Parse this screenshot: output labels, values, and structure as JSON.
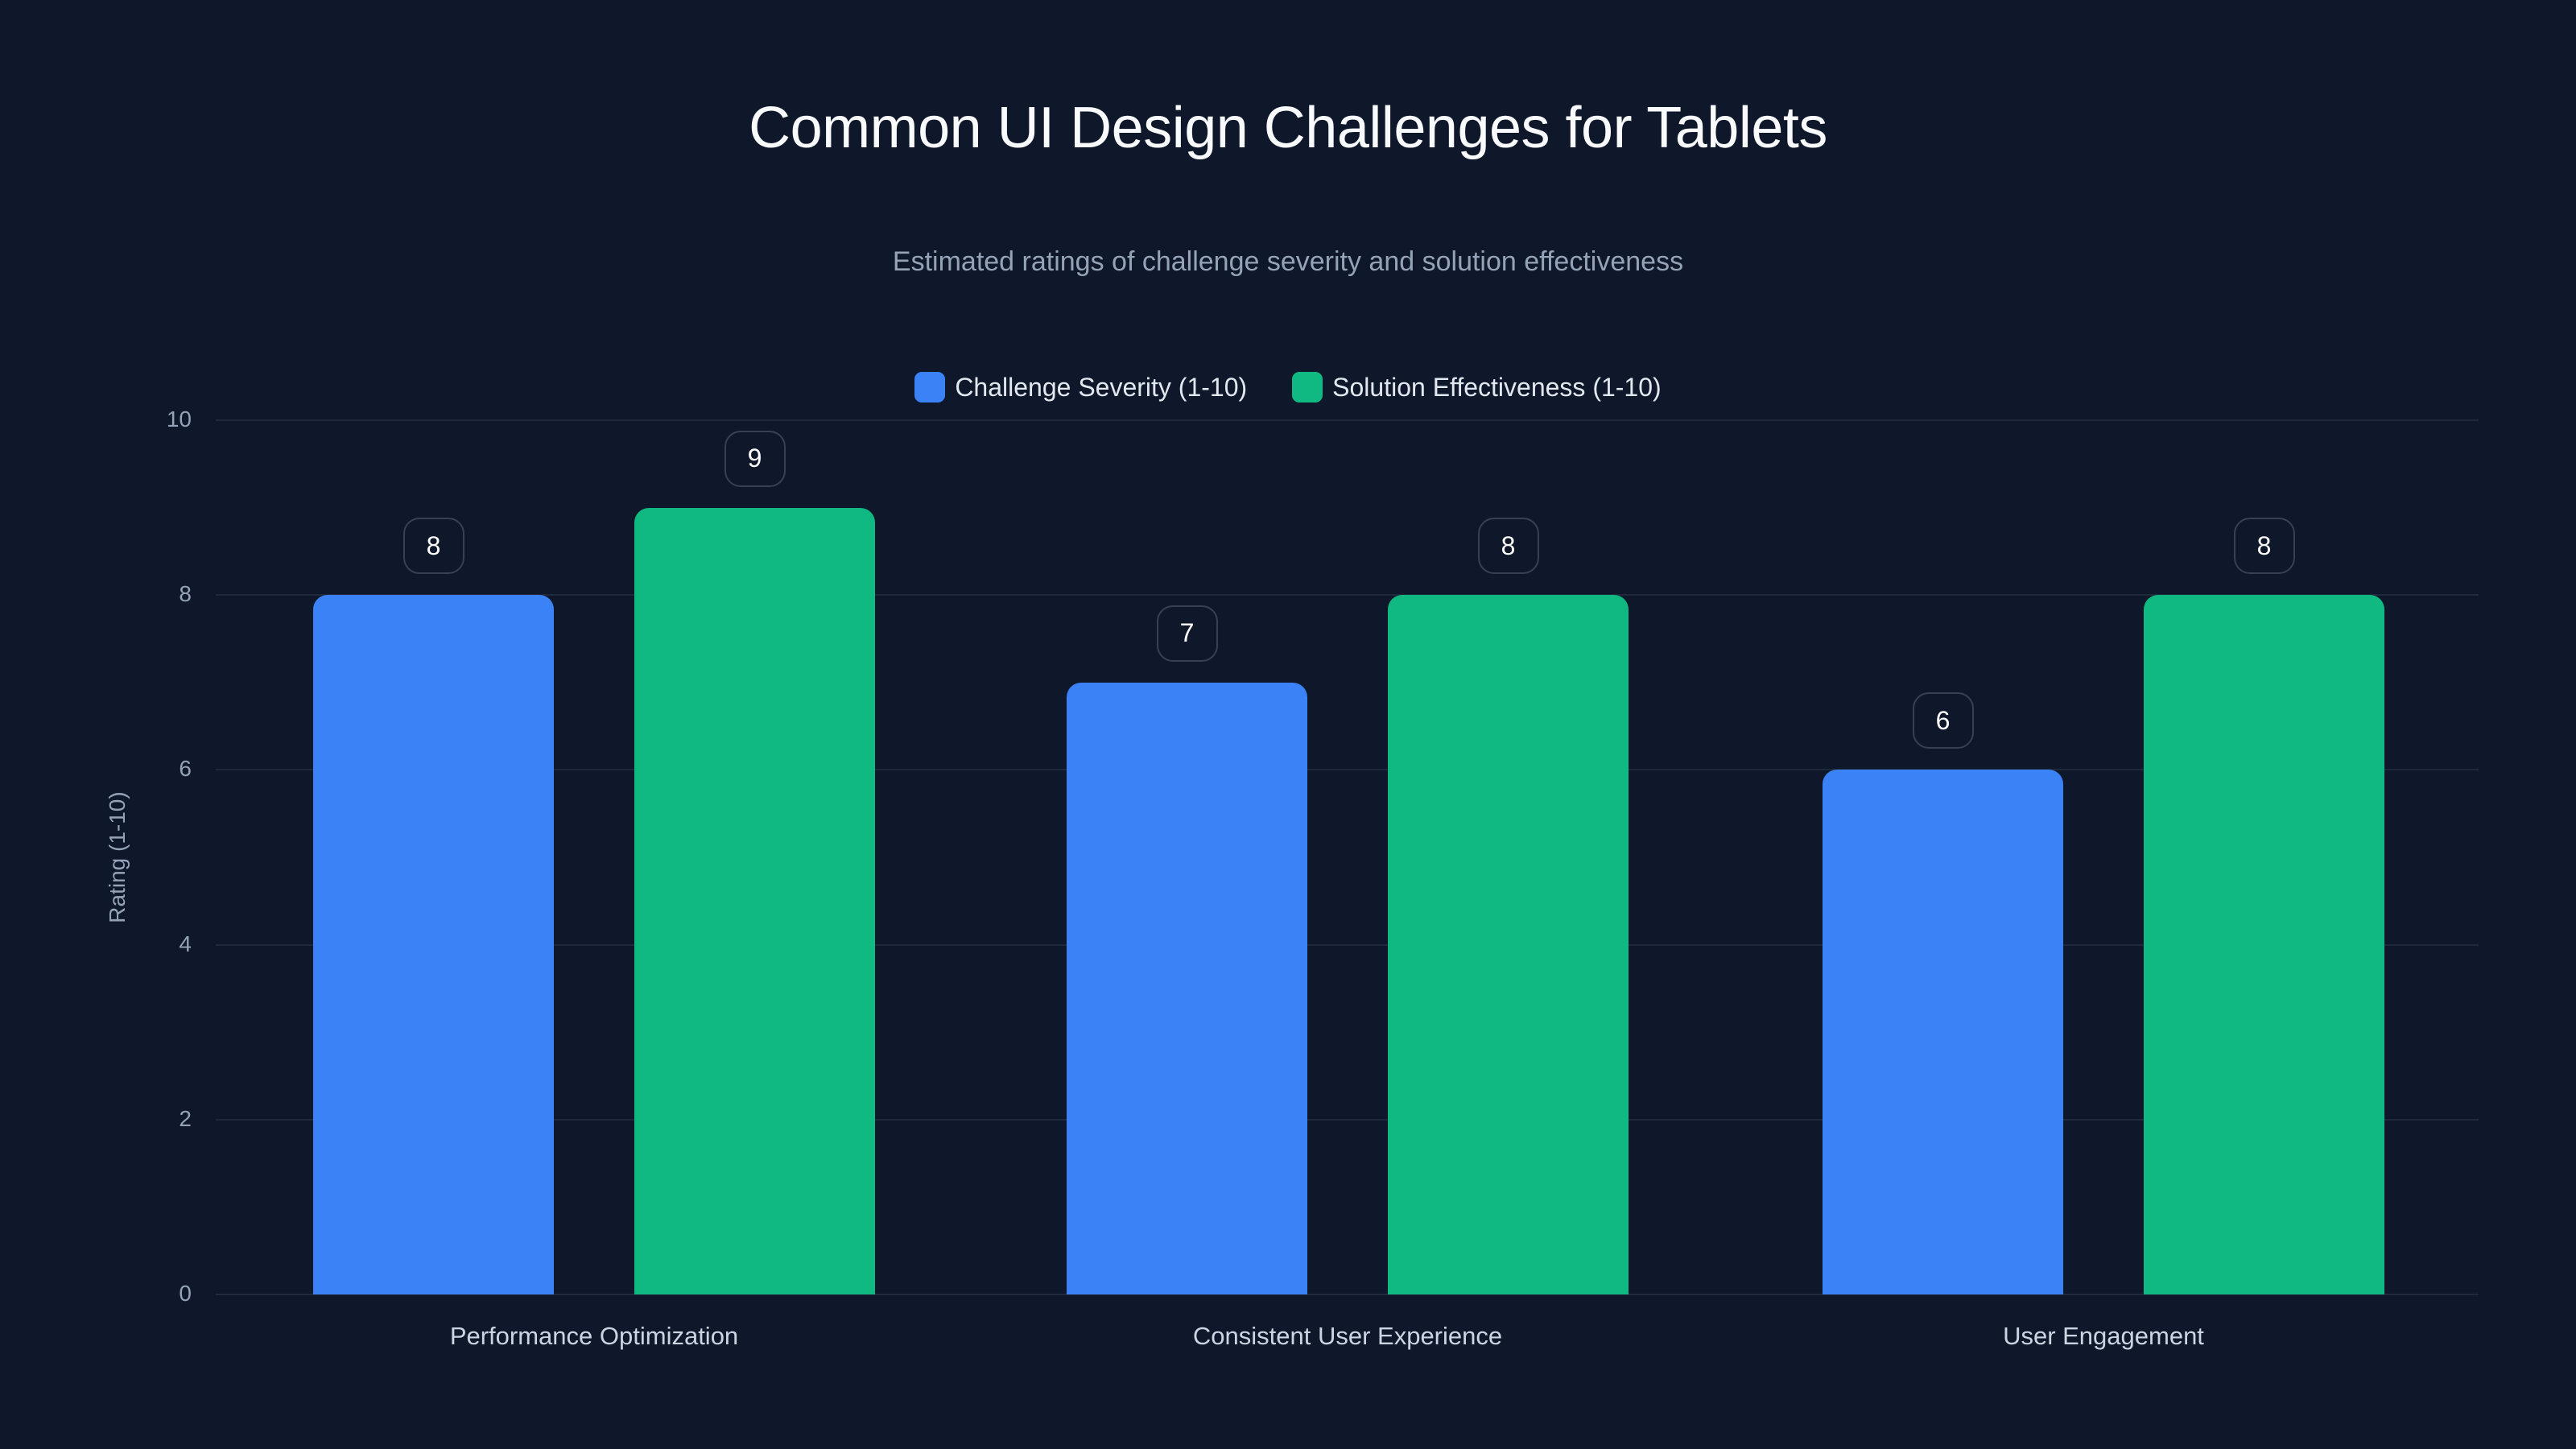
{
  "header": {
    "title": "Common UI Design Challenges for Tablets",
    "subtitle": "Estimated ratings of challenge severity and solution effectiveness"
  },
  "legend": [
    {
      "label": "Challenge Severity (1-10)",
      "color": "#3b82f6"
    },
    {
      "label": "Solution Effectiveness (1-10)",
      "color": "#10b981"
    }
  ],
  "axis": {
    "ylabel": "Rating (1-10)",
    "yticks": [
      "0",
      "2",
      "4",
      "6",
      "8",
      "10"
    ]
  },
  "chart_data": {
    "type": "bar",
    "title": "Common UI Design Challenges for Tablets",
    "subtitle": "Estimated ratings of challenge severity and solution effectiveness",
    "categories": [
      "Performance Optimization",
      "Consistent User Experience",
      "User Engagement"
    ],
    "series": [
      {
        "name": "Challenge Severity (1-10)",
        "color": "#3b82f6",
        "values": [
          8,
          7,
          6
        ]
      },
      {
        "name": "Solution Effectiveness (1-10)",
        "color": "#10b981",
        "values": [
          9,
          8,
          8
        ]
      }
    ],
    "xlabel": "",
    "ylabel": "Rating (1-10)",
    "ylim": [
      0,
      10
    ],
    "yticks": [
      0,
      2,
      4,
      6,
      8,
      10
    ],
    "grid": true,
    "legend_position": "top",
    "data_labels": true
  },
  "colors": {
    "background": "#0f172a",
    "grid": "#1e293b",
    "label_border": "#374151"
  }
}
